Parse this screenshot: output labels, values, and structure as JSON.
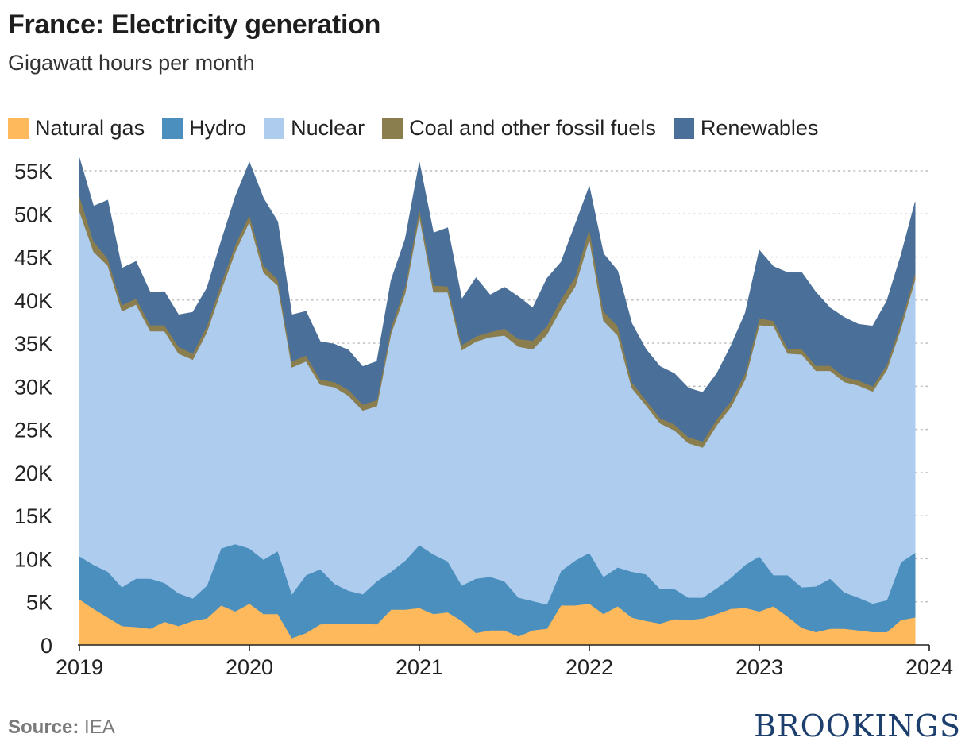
{
  "header": {
    "title": "France: Electricity generation",
    "subtitle": "Gigawatt hours per month"
  },
  "legend": [
    {
      "label": "Natural gas",
      "color": "#FDB95B"
    },
    {
      "label": "Hydro",
      "color": "#4A8FBE"
    },
    {
      "label": "Nuclear",
      "color": "#AECCEE"
    },
    {
      "label": "Coal and other fossil fuels",
      "color": "#8A7E4F"
    },
    {
      "label": "Renewables",
      "color": "#4A6F99"
    }
  ],
  "footer": {
    "source_label": "Source:",
    "source_value": "IEA",
    "brand": "BROOKINGS"
  },
  "chart_data": {
    "type": "area",
    "stacked": true,
    "x_start": "2019-01",
    "x_end": "2023-12",
    "x_ticks": [
      "2019",
      "2020",
      "2021",
      "2022",
      "2023",
      "2024"
    ],
    "y_ticks": [
      "0",
      "5K",
      "10K",
      "15K",
      "20K",
      "25K",
      "30K",
      "35K",
      "40K",
      "45K",
      "50K",
      "55K"
    ],
    "ylim": [
      0,
      55000
    ],
    "grid": "horizontal-dotted",
    "legend_position": "top",
    "series": [
      {
        "name": "Natural gas",
        "color": "#FDB95B",
        "values": [
          5300,
          4200,
          3200,
          2200,
          2100,
          1900,
          2700,
          2200,
          2800,
          3100,
          4600,
          3900,
          4800,
          3600,
          3600,
          800,
          1400,
          2400,
          2500,
          2500,
          2500,
          2400,
          4100,
          4100,
          4300,
          3600,
          3800,
          2800,
          1400,
          1700,
          1700,
          1000,
          1700,
          1900,
          4600,
          4600,
          4800,
          3600,
          4500,
          3200,
          2800,
          2500,
          3000,
          2900,
          3100,
          3600,
          4200,
          4300,
          3900,
          4500,
          3300,
          2000,
          1500,
          1900,
          1900,
          1700,
          1500,
          1500,
          2900,
          3200
        ]
      },
      {
        "name": "Hydro",
        "color": "#4A8FBE",
        "values": [
          5000,
          5100,
          5300,
          4500,
          5600,
          5800,
          4500,
          3800,
          2600,
          3800,
          6600,
          7800,
          6400,
          6300,
          7300,
          5100,
          6700,
          6400,
          4600,
          3800,
          3400,
          5000,
          4400,
          5700,
          7300,
          6900,
          5900,
          4100,
          6300,
          6200,
          5700,
          4500,
          3400,
          2800,
          4000,
          5200,
          5900,
          4300,
          4500,
          5300,
          5400,
          4000,
          3500,
          2600,
          2400,
          3000,
          3600,
          5000,
          6400,
          3600,
          4800,
          4700,
          5300,
          5800,
          4200,
          3800,
          3300,
          3700,
          6700,
          7500
        ]
      },
      {
        "name": "Nuclear",
        "color": "#AECCEE",
        "values": [
          40000,
          36300,
          35500,
          32000,
          31800,
          28700,
          29200,
          27800,
          27700,
          29400,
          29900,
          33900,
          37900,
          33300,
          30800,
          26300,
          24800,
          21400,
          22800,
          22600,
          21300,
          20300,
          27600,
          31000,
          38100,
          30400,
          31200,
          27300,
          27500,
          27800,
          28500,
          29100,
          29200,
          31300,
          30400,
          31800,
          36400,
          29700,
          26900,
          21300,
          19600,
          19200,
          18400,
          17900,
          17400,
          18900,
          19800,
          21500,
          26800,
          28900,
          25700,
          27000,
          25000,
          24100,
          24400,
          24600,
          24600,
          26700,
          27100,
          31700
        ]
      },
      {
        "name": "Coal and other fossil fuels",
        "color": "#8A7E4F",
        "values": [
          1800,
          1200,
          800,
          700,
          700,
          700,
          700,
          800,
          700,
          700,
          800,
          800,
          800,
          800,
          700,
          700,
          700,
          600,
          600,
          700,
          700,
          700,
          700,
          800,
          900,
          800,
          700,
          600,
          600,
          600,
          800,
          900,
          1000,
          1000,
          1100,
          1100,
          1200,
          1100,
          1100,
          700,
          600,
          600,
          700,
          700,
          700,
          700,
          700,
          700,
          800,
          600,
          600,
          600,
          600,
          600,
          600,
          600,
          600,
          600,
          700,
          700
        ]
      },
      {
        "name": "Renewables",
        "color": "#4A6F99",
        "values": [
          4400,
          4100,
          6800,
          4300,
          4300,
          3800,
          3900,
          3700,
          4800,
          4400,
          4900,
          5600,
          6100,
          7800,
          6700,
          5400,
          5100,
          4400,
          4400,
          4600,
          4400,
          4500,
          5500,
          5500,
          5400,
          6100,
          6800,
          5300,
          6800,
          4300,
          4800,
          4900,
          3800,
          5500,
          4300,
          6100,
          4900,
          6700,
          6400,
          6800,
          5900,
          6000,
          5900,
          5700,
          5700,
          5300,
          6400,
          7000,
          7900,
          6300,
          8800,
          8900,
          8500,
          6700,
          6900,
          6500,
          7000,
          7400,
          7800,
          8300
        ]
      }
    ]
  }
}
